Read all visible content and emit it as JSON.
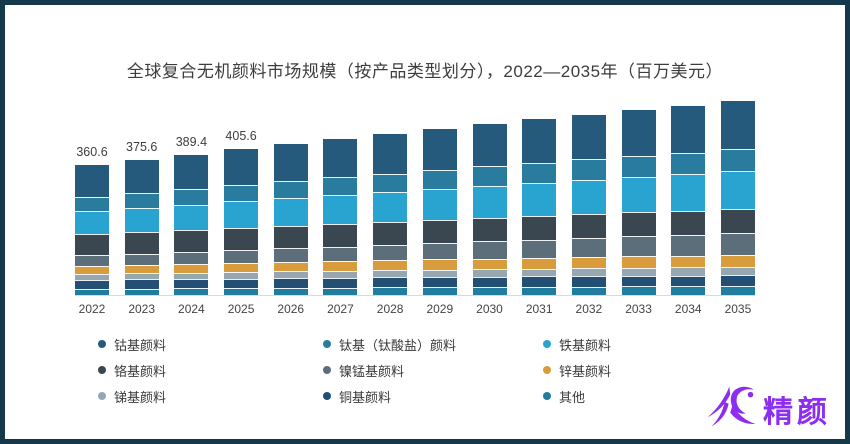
{
  "frame": {
    "border_color": "#15394b",
    "background": "#ffffff"
  },
  "title": "全球复合无机颜料市场规模（按产品类型划分），2022—2035年（百万美元）",
  "chart_data": {
    "type": "bar",
    "stacked": true,
    "orientation": "vertical",
    "unit": "百万美元",
    "categories": [
      "2022",
      "2023",
      "2024",
      "2025",
      "2026",
      "2027",
      "2028",
      "2029",
      "2030",
      "2031",
      "2032",
      "2033",
      "2034",
      "2035"
    ],
    "totals": [
      360.6,
      375.6,
      389.4,
      405.6,
      419,
      434,
      447,
      461,
      474,
      488,
      500,
      513,
      525,
      540
    ],
    "total_labels_shown": [
      "360.6",
      "375.6",
      "389.4",
      "405.6"
    ],
    "stack_order": "first_series_on_top",
    "grid": "off",
    "value_axis_visible": false,
    "baseline_color": "#d9d9d9",
    "series": [
      {
        "name": "钴基颜料",
        "color": "#255a7c",
        "values": [
          87.6,
          91.4,
          94.9,
          99.0,
          102.4,
          106.3,
          109.7,
          113.3,
          116.7,
          120.3,
          123.4,
          126.8,
          130.0,
          133.9
        ]
      },
      {
        "name": "钛基（钛酸盐）颜料",
        "color": "#2a7c9f",
        "values": [
          39.7,
          41.5,
          43.1,
          45.1,
          46.7,
          48.6,
          50.2,
          52.0,
          53.6,
          55.4,
          56.9,
          58.6,
          60.2,
          62.1
        ]
      },
      {
        "name": "铁基颜料",
        "color": "#29a3d0",
        "values": [
          64.9,
          68.0,
          70.9,
          74.2,
          77.1,
          80.3,
          83.1,
          86.2,
          89.1,
          92.2,
          95.0,
          98.0,
          100.8,
          104.2
        ]
      },
      {
        "name": "铬基颜料",
        "color": "#3a4750",
        "values": [
          58.4,
          59.8,
          60.8,
          62.1,
          63.0,
          64.0,
          64.6,
          65.2,
          65.7,
          66.2,
          66.4,
          66.6,
          66.6,
          67.0
        ]
      },
      {
        "name": "镍锰基颜料",
        "color": "#5b6e7a",
        "values": [
          28.8,
          31.0,
          33.1,
          35.5,
          37.8,
          40.2,
          42.6,
          45.1,
          47.5,
          50.2,
          52.7,
          55.4,
          58.0,
          61.0
        ]
      },
      {
        "name": "锌基颜料",
        "color": "#d89c3c",
        "values": [
          22.4,
          23.3,
          24.1,
          25.1,
          26.0,
          26.9,
          27.7,
          28.6,
          29.4,
          30.3,
          31.0,
          31.8,
          32.6,
          33.5
        ]
      },
      {
        "name": "锑基颜料",
        "color": "#97a7b2",
        "values": [
          16.9,
          17.5,
          18.1,
          18.7,
          19.2,
          19.7,
          20.2,
          20.7,
          21.1,
          21.6,
          22.0,
          22.4,
          22.7,
          23.2
        ]
      },
      {
        "name": "铜基颜料",
        "color": "#234f74",
        "values": [
          24.9,
          25.5,
          26.0,
          26.7,
          27.1,
          27.6,
          27.9,
          28.4,
          28.6,
          28.9,
          29.1,
          29.3,
          29.5,
          29.7
        ]
      },
      {
        "name": "其他",
        "color": "#207d9e",
        "values": [
          16.9,
          17.7,
          18.3,
          19.1,
          19.7,
          20.4,
          21.0,
          21.7,
          22.3,
          22.9,
          23.5,
          24.1,
          24.7,
          25.4
        ]
      }
    ],
    "legend": {
      "position": "bottom",
      "columns": 3,
      "fill": "column-major"
    }
  },
  "watermark": {
    "brand_text": "精颜",
    "color": "#8e2df2"
  }
}
